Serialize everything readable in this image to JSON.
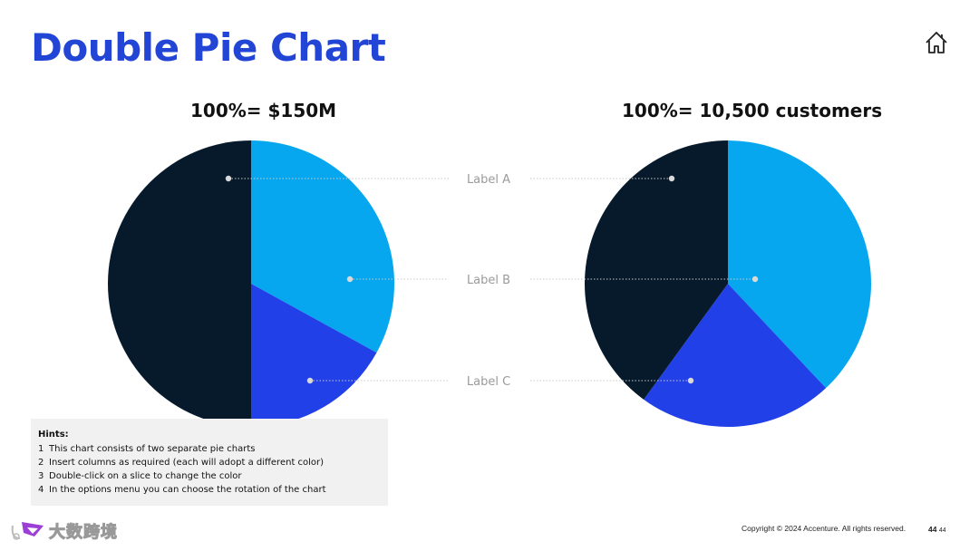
{
  "page": {
    "title": "Double Pie Chart",
    "copyright": "Copyright © 2024 Accenture. All rights reserved.",
    "page_number": "44",
    "page_number_small": "44",
    "watermark_text": "大数跨境"
  },
  "hints": {
    "heading": "Hints:",
    "items": [
      {
        "num": "1",
        "text": "This chart consists of two separate pie charts"
      },
      {
        "num": "2",
        "text": "Insert columns as required (each will adopt a different color)"
      },
      {
        "num": "3",
        "text": "Double-click on a slice to change the color"
      },
      {
        "num": "4",
        "text": "In the options menu you can choose the rotation of the chart"
      }
    ]
  },
  "colors": {
    "title": "#2245d6",
    "slice_a": "#061a2c",
    "slice_b": "#06a7ef",
    "slice_c": "#2240e8",
    "leader": "#c8c8c8"
  },
  "chart_data": [
    {
      "type": "pie",
      "title": "100%= $150M",
      "labels": [
        "Label A",
        "Label B",
        "Label C"
      ],
      "values": [
        50,
        33,
        17
      ]
    },
    {
      "type": "pie",
      "title": "100%= 10,500 customers",
      "labels": [
        "Label A",
        "Label B",
        "Label C"
      ],
      "values": [
        40,
        38,
        22
      ]
    }
  ]
}
